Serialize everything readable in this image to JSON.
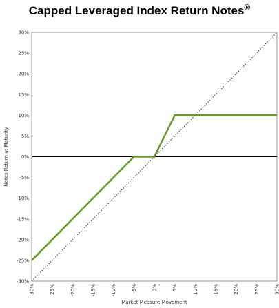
{
  "title": {
    "text": "Capped Leveraged Index Return Notes",
    "mark": "®"
  },
  "chart_data": {
    "type": "line",
    "title": "Capped Leveraged Index Return Notes®",
    "xlabel": "Market Measure Movement",
    "ylabel": "Notes Return at Maturity",
    "xlim": [
      -30,
      30
    ],
    "ylim": [
      -30,
      30
    ],
    "x_ticks": [
      -30,
      -25,
      -20,
      -15,
      -10,
      -5,
      0,
      5,
      10,
      15,
      20,
      25,
      30
    ],
    "y_ticks": [
      -30,
      -25,
      -20,
      -15,
      -10,
      -5,
      0,
      5,
      10,
      15,
      20,
      25,
      30
    ],
    "tick_format": "percent",
    "grid": false,
    "series": [
      {
        "style": "solid",
        "color": "#6a9a2e",
        "points": [
          [
            -30,
            -25
          ],
          [
            -5,
            0
          ],
          [
            0,
            0
          ],
          [
            5,
            10
          ],
          [
            30,
            10
          ]
        ]
      },
      {
        "style": "dotted",
        "color": "#333333",
        "points": [
          [
            -30,
            -30
          ],
          [
            30,
            30
          ]
        ]
      }
    ],
    "zero_line": true
  }
}
